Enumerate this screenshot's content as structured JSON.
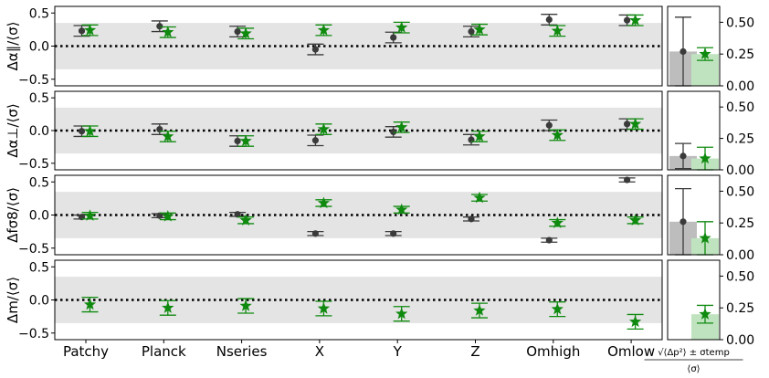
{
  "chart_data": {
    "type": "scatter",
    "categories": [
      "Patchy",
      "Planck",
      "Nseries",
      "X",
      "Y",
      "Z",
      "Omhigh",
      "Omlow"
    ],
    "band": [
      -0.35,
      0.35
    ],
    "ylim": [
      -0.6,
      0.6
    ],
    "yticks": [
      -0.5,
      0.0,
      0.5
    ],
    "ytick_labels": [
      "−0.5",
      "0.0",
      "0.5"
    ],
    "bar_ylim": [
      0,
      0.625
    ],
    "bar_yticks": [
      0,
      0.25,
      0.5
    ],
    "bar_ytick_labels": [
      "0.00",
      "0.25",
      "0.50"
    ],
    "bar_xlabel": "√⟨Δp²⟩ ± σtemp / ⟨σ⟩",
    "colors": {
      "series1": "#3a3a3a",
      "series2": "#0f8a0f",
      "band": "#e4e4e4",
      "bar1": "#bdbdbd",
      "bar2": "#bfe3bf"
    },
    "panels": [
      {
        "ylabel": "Δα∥/⟨σ⟩",
        "series": [
          {
            "values": [
              0.23,
              0.3,
              0.22,
              -0.05,
              0.13,
              0.22,
              0.4,
              0.39
            ],
            "errors": [
              0.08,
              0.08,
              0.08,
              0.08,
              0.08,
              0.08,
              0.08,
              0.08
            ]
          },
          {
            "values": [
              0.24,
              0.21,
              0.19,
              0.24,
              0.28,
              0.25,
              0.23,
              0.39
            ],
            "errors": [
              0.08,
              0.08,
              0.08,
              0.08,
              0.08,
              0.08,
              0.08,
              0.08
            ]
          }
        ],
        "bars": [
          {
            "value": 0.27,
            "error": 0.27
          },
          {
            "value": 0.25,
            "error": 0.05
          }
        ]
      },
      {
        "ylabel": "Δα⊥/⟨σ⟩",
        "series": [
          {
            "values": [
              -0.01,
              0.02,
              -0.16,
              -0.15,
              -0.02,
              -0.14,
              0.08,
              0.1
            ],
            "errors": [
              0.08,
              0.08,
              0.08,
              0.08,
              0.08,
              0.08,
              0.08,
              0.08
            ]
          },
          {
            "values": [
              -0.01,
              -0.09,
              -0.16,
              0.02,
              0.05,
              -0.09,
              -0.07,
              0.1
            ],
            "errors": [
              0.08,
              0.08,
              0.08,
              0.08,
              0.08,
              0.08,
              0.08,
              0.08
            ]
          }
        ],
        "bars": [
          {
            "value": 0.11,
            "error": 0.1
          },
          {
            "value": 0.09,
            "error": 0.09
          }
        ]
      },
      {
        "ylabel": "Δfσ8/⟨σ⟩",
        "series": [
          {
            "values": [
              -0.03,
              -0.01,
              0.01,
              -0.28,
              -0.28,
              -0.06,
              -0.38,
              0.53
            ],
            "errors": [
              0.03,
              0.03,
              0.03,
              0.03,
              0.03,
              0.03,
              0.03,
              0.03
            ]
          },
          {
            "values": [
              -0.01,
              -0.02,
              -0.08,
              0.18,
              0.08,
              0.26,
              -0.12,
              -0.08
            ],
            "errors": [
              0.05,
              0.05,
              0.05,
              0.05,
              0.05,
              0.05,
              0.05,
              0.05
            ]
          }
        ],
        "bars": [
          {
            "value": 0.26,
            "error": 0.26
          },
          {
            "value": 0.13,
            "error": 0.13
          }
        ]
      },
      {
        "ylabel": "Δm/⟨σ⟩",
        "series": [
          {
            "values": [
              null,
              null,
              null,
              null,
              null,
              null,
              null,
              null
            ],
            "errors": [
              0,
              0,
              0,
              0,
              0,
              0,
              0,
              0
            ]
          },
          {
            "values": [
              -0.07,
              -0.12,
              -0.09,
              -0.13,
              -0.21,
              -0.16,
              -0.14,
              -0.33
            ],
            "errors": [
              0.11,
              0.11,
              0.11,
              0.11,
              0.11,
              0.11,
              0.11,
              0.11
            ]
          }
        ],
        "bars": [
          {
            "value": null,
            "error": 0
          },
          {
            "value": 0.2,
            "error": 0.07
          }
        ]
      }
    ]
  }
}
